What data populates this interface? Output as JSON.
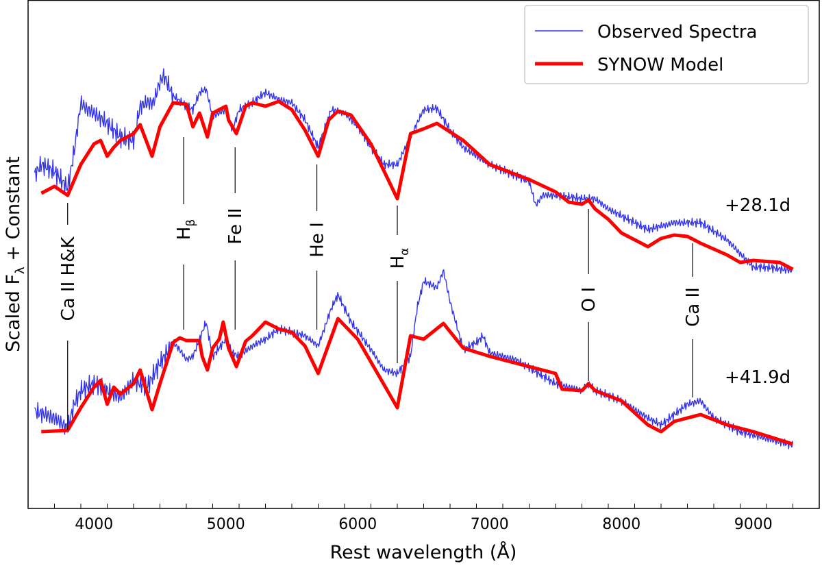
{
  "chart_data": {
    "type": "line",
    "title": "",
    "xlabel": "Rest wavelength (Å)",
    "ylabel": "Scaled F_λ + Constant",
    "ylabel_main": "Scaled F",
    "ylabel_sub": "λ",
    "ylabel_rest": " + Constant",
    "xlim": [
      3500,
      9500
    ],
    "ylim": [
      0,
      7.42
    ],
    "xticks": [
      4000,
      5000,
      6000,
      7000,
      8000,
      9000
    ],
    "xtick_labels": [
      "4000",
      "5000",
      "6000",
      "7000",
      "8000",
      "9000"
    ],
    "minor_tick_step": 200,
    "grid": false,
    "legend": {
      "placement": "top-right",
      "entries": [
        {
          "label": "Observed Spectra",
          "color": "#3333ee"
        },
        {
          "label": "SYNOW Model",
          "color": "#ff0000"
        }
      ]
    },
    "epochs": [
      {
        "label": "+28.1d"
      },
      {
        "label": "+41.9d"
      }
    ],
    "series": [
      {
        "name": "Observed Spectra",
        "epoch": "+28.1d",
        "color": "#3333ee",
        "x": [
          3550,
          3600,
          3700,
          3800,
          3850,
          3900,
          3950,
          4000,
          4100,
          4200,
          4300,
          4350,
          4400,
          4450,
          4500,
          4530,
          4600,
          4700,
          4750,
          4800,
          4850,
          4900,
          5000,
          5050,
          5100,
          5200,
          5300,
          5400,
          5500,
          5600,
          5700,
          5800,
          5900,
          6000,
          6100,
          6200,
          6300,
          6400,
          6500,
          6600,
          6700,
          6800,
          7000,
          7300,
          7350,
          7400,
          7500,
          7700,
          7800,
          7900,
          8000,
          8200,
          8400,
          8600,
          8800,
          9000,
          9100,
          9300
        ],
        "y": [
          4.87,
          5.02,
          4.92,
          4.67,
          5.22,
          5.92,
          5.82,
          5.77,
          5.62,
          5.42,
          5.37,
          5.87,
          5.92,
          5.92,
          6.22,
          6.32,
          6.02,
          5.87,
          5.82,
          6.07,
          6.12,
          5.72,
          5.82,
          5.52,
          5.82,
          5.92,
          6.07,
          5.97,
          5.92,
          5.67,
          5.27,
          5.82,
          5.77,
          5.57,
          5.27,
          5.02,
          5.02,
          5.42,
          5.82,
          5.84,
          5.52,
          5.27,
          5.02,
          4.77,
          4.42,
          4.57,
          4.57,
          4.52,
          4.52,
          4.37,
          4.27,
          4.07,
          4.17,
          4.17,
          3.92,
          3.52,
          3.52,
          3.47
        ]
      },
      {
        "name": "SYNOW Model",
        "epoch": "+28.1d",
        "color": "#ff0000",
        "x": [
          3600,
          3700,
          3800,
          3900,
          4000,
          4050,
          4100,
          4150,
          4200,
          4300,
          4350,
          4440,
          4500,
          4600,
          4700,
          4750,
          4800,
          4860,
          4900,
          5000,
          5020,
          5080,
          5150,
          5200,
          5300,
          5400,
          5500,
          5600,
          5700,
          5780,
          5850,
          5950,
          6100,
          6200,
          6300,
          6400,
          6500,
          6600,
          6800,
          7000,
          7300,
          7500,
          7600,
          7700,
          7750,
          7800,
          7900,
          8000,
          8200,
          8300,
          8400,
          8500,
          8600,
          8800,
          8900,
          9000,
          9200,
          9300
        ],
        "y": [
          4.6,
          4.7,
          4.57,
          5.02,
          5.32,
          5.37,
          5.14,
          5.27,
          5.37,
          5.47,
          5.6,
          5.14,
          5.57,
          5.92,
          5.9,
          5.57,
          5.77,
          5.42,
          5.77,
          5.87,
          5.67,
          5.47,
          5.87,
          5.92,
          5.87,
          5.94,
          5.82,
          5.52,
          5.14,
          5.67,
          5.8,
          5.74,
          5.32,
          4.92,
          4.52,
          5.47,
          5.54,
          5.62,
          5.37,
          5.02,
          4.8,
          4.62,
          4.47,
          4.44,
          4.5,
          4.37,
          4.22,
          4.02,
          3.82,
          3.94,
          3.99,
          3.97,
          3.87,
          3.7,
          3.59,
          3.62,
          3.59,
          3.49
        ]
      },
      {
        "name": "Observed Spectra",
        "epoch": "+41.9d",
        "color": "#3333ee",
        "x": [
          3550,
          3700,
          3800,
          3850,
          3900,
          4000,
          4100,
          4200,
          4300,
          4400,
          4500,
          4600,
          4650,
          4700,
          4750,
          4850,
          4900,
          5000,
          5050,
          5100,
          5200,
          5300,
          5400,
          5500,
          5600,
          5700,
          5800,
          5850,
          5950,
          6100,
          6200,
          6300,
          6400,
          6450,
          6500,
          6600,
          6650,
          6700,
          6800,
          6900,
          6950,
          7000,
          7200,
          7500,
          7700,
          7750,
          7800,
          8000,
          8200,
          8300,
          8400,
          8500,
          8600,
          8700,
          8900,
          9100,
          9300
        ],
        "y": [
          1.42,
          1.32,
          1.17,
          1.52,
          1.72,
          1.82,
          1.72,
          1.62,
          1.87,
          1.77,
          2.12,
          2.42,
          2.32,
          2.17,
          2.22,
          2.72,
          2.22,
          2.47,
          2.27,
          2.22,
          2.37,
          2.47,
          2.62,
          2.57,
          2.52,
          2.37,
          2.92,
          3.12,
          2.72,
          2.32,
          2.02,
          1.97,
          2.22,
          2.92,
          3.32,
          3.22,
          3.47,
          3.02,
          2.32,
          2.42,
          2.52,
          2.27,
          2.17,
          1.82,
          1.72,
          1.82,
          1.72,
          1.57,
          1.32,
          1.22,
          1.37,
          1.52,
          1.57,
          1.32,
          1.12,
          1.02,
          0.92
        ]
      },
      {
        "name": "SYNOW Model",
        "epoch": "+41.9d",
        "color": "#ff0000",
        "x": [
          3600,
          3800,
          3900,
          4000,
          4050,
          4100,
          4150,
          4200,
          4300,
          4350,
          4440,
          4500,
          4600,
          4650,
          4700,
          4800,
          4820,
          4860,
          4900,
          4950,
          4980,
          5020,
          5080,
          5150,
          5200,
          5300,
          5400,
          5500,
          5600,
          5700,
          5850,
          6000,
          6300,
          6400,
          6500,
          6650,
          6800,
          7000,
          7500,
          7550,
          7700,
          7750,
          7800,
          8000,
          8200,
          8300,
          8400,
          8600,
          8800,
          9000,
          9300
        ],
        "y": [
          1.12,
          1.14,
          1.47,
          1.77,
          1.87,
          1.52,
          1.77,
          1.67,
          1.82,
          2.02,
          1.44,
          1.82,
          2.42,
          2.49,
          2.45,
          2.45,
          2.22,
          2.02,
          2.34,
          2.47,
          2.72,
          2.34,
          2.07,
          2.44,
          2.52,
          2.72,
          2.62,
          2.57,
          2.37,
          1.97,
          2.77,
          2.47,
          1.47,
          2.52,
          2.47,
          2.7,
          2.34,
          2.22,
          1.97,
          1.74,
          1.72,
          1.82,
          1.72,
          1.57,
          1.22,
          1.12,
          1.27,
          1.37,
          1.22,
          1.12,
          0.94
        ]
      }
    ],
    "annotations": [
      {
        "label": "Ca II H&K",
        "main": "Ca II H&K",
        "sub": "",
        "wavelength": 3800
      },
      {
        "label": "Hβ",
        "main": "H",
        "sub": "β",
        "wavelength": 4680
      },
      {
        "label": "Fe II",
        "main": "Fe II",
        "sub": "",
        "wavelength": 5070
      },
      {
        "label": "He I",
        "main": "He I",
        "sub": "",
        "wavelength": 5690
      },
      {
        "label": "Hα",
        "main": "H",
        "sub": "α",
        "wavelength": 6300
      },
      {
        "label": "O I",
        "main": "O I",
        "sub": "",
        "wavelength": 7750
      },
      {
        "label": "Ca II",
        "main": "Ca II",
        "sub": "",
        "wavelength": 8540
      }
    ]
  }
}
